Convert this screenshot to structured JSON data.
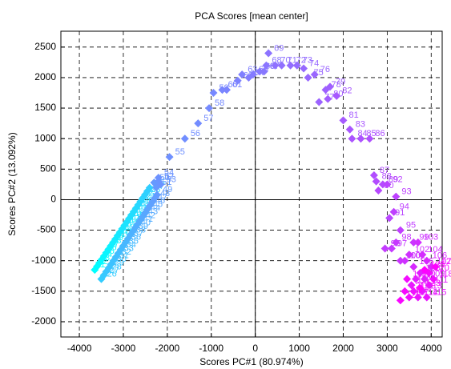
{
  "chart_data": {
    "type": "scatter",
    "title": "PCA Scores [mean center]",
    "x_label": "Scores PC#1 (80.974%)",
    "y_label": "Scores PC#2 (13.092%)",
    "xlim": [
      -4420,
      4250
    ],
    "ylim": [
      -2250,
      2760
    ],
    "xticks": [
      -4000,
      -3000,
      -2000,
      -1000,
      0,
      1000,
      2000,
      3000,
      4000
    ],
    "yticks": [
      -2000,
      -1500,
      -1000,
      -500,
      0,
      500,
      1000,
      1500,
      2000,
      2500
    ],
    "grid": true,
    "zero_lines": true,
    "colormap": [
      "#00ffff",
      "#ff00ff"
    ],
    "marker": "diamond",
    "x": [
      -3650,
      -3598,
      -3546,
      -3494,
      -3442,
      -3390,
      -3338,
      -3286,
      -3234,
      -3182,
      -3130,
      -3078,
      -3026,
      -2974,
      -2922,
      -2870,
      -2818,
      -2766,
      -2714,
      -2662,
      -2610,
      -2558,
      -2506,
      -2454,
      -2402,
      -3500,
      -3445,
      -3390,
      -3335,
      -3280,
      -3225,
      -3170,
      -3115,
      -3060,
      -3005,
      -2950,
      -2895,
      -2840,
      -2785,
      -2730,
      -2675,
      -2620,
      -2565,
      -2510,
      -2455,
      -2400,
      -2345,
      -2290,
      -2235,
      -2300,
      -2250,
      -2200,
      -2150,
      -2200,
      -1950,
      -1600,
      -1300,
      -1050,
      -950,
      -750,
      -650,
      -400,
      -300,
      -150,
      -50,
      100,
      200,
      250,
      300,
      450,
      600,
      800,
      950,
      1100,
      1200,
      1350,
      1450,
      1600,
      1700,
      1650,
      2000,
      1850,
      2150,
      2200,
      2400,
      2600,
      2700,
      2750,
      2900,
      2800,
      3050,
      3000,
      3200,
      3150,
      3300,
      2950,
      3100,
      3200,
      3600,
      3300,
      3400,
      3500,
      3700,
      3800,
      3600,
      3900,
      4000,
      3750,
      3850,
      3650,
      3950,
      3550,
      3800,
      3700,
      3900,
      3600,
      3500,
      4050,
      3450,
      3950,
      3400,
      3300,
      3750,
      4100,
      3850
    ],
    "y": [
      -1150,
      -1094,
      -1038,
      -982,
      -926,
      -870,
      -814,
      -758,
      -702,
      -646,
      -590,
      -534,
      -478,
      -422,
      -366,
      -310,
      -254,
      -198,
      -142,
      -86,
      -30,
      26,
      82,
      138,
      194,
      -1300,
      -1240,
      -1180,
      -1120,
      -1060,
      -1000,
      -940,
      -880,
      -820,
      -760,
      -700,
      -640,
      -580,
      -520,
      -460,
      -400,
      -340,
      -280,
      -220,
      -160,
      -100,
      -40,
      20,
      80,
      280,
      200,
      300,
      250,
      360,
      700,
      1000,
      1250,
      1500,
      1750,
      1800,
      1800,
      1950,
      2050,
      2000,
      2050,
      2100,
      2100,
      2200,
      2400,
      2200,
      2200,
      2200,
      2200,
      2150,
      2000,
      2050,
      1600,
      1800,
      1850,
      1650,
      1300,
      1700,
      1150,
      1000,
      1000,
      1000,
      400,
      300,
      250,
      150,
      -300,
      250,
      50,
      -200,
      -500,
      -800,
      -800,
      -700,
      -700,
      -1000,
      -1000,
      -900,
      -700,
      -900,
      -1100,
      -1000,
      -1100,
      -1200,
      -1300,
      -1300,
      -1400,
      -1400,
      -1500,
      -1600,
      -1600,
      -1500,
      -1600,
      -1300,
      -1300,
      -1200,
      -1500,
      -1650,
      -1450,
      -1100,
      -1150
    ],
    "labels": [
      "1",
      "2",
      "3",
      "4",
      "5",
      "6",
      "7",
      "8",
      "9",
      "10",
      "11",
      "12",
      "13",
      "14",
      "15",
      "16",
      "17",
      "18",
      "19",
      "20",
      "21",
      "22",
      "23",
      "24",
      "25",
      "26",
      "27",
      "28",
      "29",
      "30",
      "31",
      "32",
      "33",
      "34",
      "35",
      "36",
      "37",
      "38",
      "39",
      "40",
      "41",
      "42",
      "43",
      "44",
      "45",
      "46",
      "47",
      "48",
      "49",
      "50",
      "51",
      "52",
      "53",
      "54",
      "55",
      "56",
      "57",
      "58",
      "59",
      "60",
      "61",
      "62",
      "63",
      "64",
      "65",
      "66",
      "67",
      "68",
      "69",
      "70",
      "71",
      "72",
      "73",
      "74",
      "75",
      "76",
      "77",
      "78",
      "79",
      "80",
      "81",
      "82",
      "83",
      "84",
      "85",
      "86",
      "87",
      "88",
      "89",
      "90",
      "91",
      "92",
      "93",
      "94",
      "95",
      "96",
      "97",
      "98",
      "99",
      "100",
      "101",
      "102",
      "103",
      "104",
      "105",
      "106",
      "107",
      "108",
      "109",
      "110",
      "111",
      "112",
      "113",
      "114",
      "115",
      "116",
      "117",
      "118",
      "119",
      "120",
      "121",
      "122",
      "123",
      "124",
      "125"
    ]
  }
}
